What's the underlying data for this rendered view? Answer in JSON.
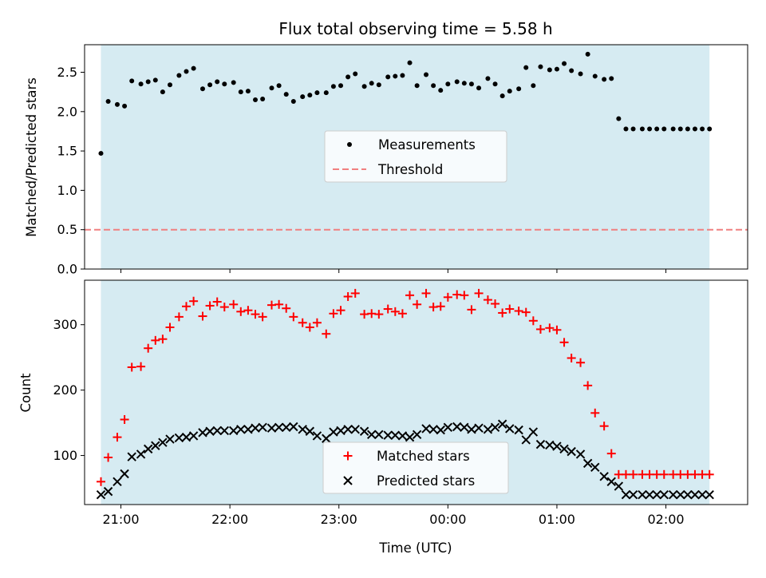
{
  "chart_data": [
    {
      "type": "scatter",
      "title": "Flux total observing time = 5.58 h",
      "ylabel": "Matched/Predicted stars",
      "xlabel": "",
      "xlim": [
        "20:40",
        "02:45"
      ],
      "ylim": [
        0,
        2.85
      ],
      "yticks": [
        0.0,
        0.5,
        1.0,
        1.5,
        2.0,
        2.5
      ],
      "ytick_labels": [
        "0.0",
        "0.5",
        "1.0",
        "1.5",
        "2.0",
        "2.5"
      ],
      "observing_window": [
        "20:49",
        "02:24"
      ],
      "legend": {
        "placement": "center",
        "entries": [
          "Measurements",
          "Threshold"
        ]
      },
      "threshold": {
        "name": "Threshold",
        "value": 0.5,
        "color": "#f08080",
        "style": "dashed"
      },
      "series": [
        {
          "name": "Measurements",
          "color": "#000000",
          "marker": "dot",
          "x": [
            "20:49",
            "20:53",
            "20:58",
            "21:02",
            "21:06",
            "21:11",
            "21:15",
            "21:19",
            "21:23",
            "21:27",
            "21:32",
            "21:36",
            "21:40",
            "21:45",
            "21:49",
            "21:53",
            "21:57",
            "22:02",
            "22:06",
            "22:10",
            "22:14",
            "22:18",
            "22:23",
            "22:27",
            "22:31",
            "22:35",
            "22:40",
            "22:44",
            "22:48",
            "22:53",
            "22:57",
            "23:01",
            "23:05",
            "23:09",
            "23:14",
            "23:18",
            "23:22",
            "23:27",
            "23:31",
            "23:35",
            "23:39",
            "23:43",
            "23:48",
            "23:52",
            "23:56",
            "00:00",
            "00:05",
            "00:09",
            "00:13",
            "00:17",
            "00:22",
            "00:26",
            "00:30",
            "00:34",
            "00:39",
            "00:43",
            "00:47",
            "00:51",
            "00:56",
            "01:00",
            "01:04",
            "01:08",
            "01:13",
            "01:17",
            "01:21",
            "01:26",
            "01:30",
            "01:34",
            "01:38",
            "01:42",
            "01:47",
            "01:51",
            "01:55",
            "01:59",
            "02:04",
            "02:08",
            "02:12",
            "02:16",
            "02:20",
            "02:24"
          ],
          "y": [
            1.47,
            2.13,
            2.09,
            2.07,
            2.39,
            2.35,
            2.38,
            2.4,
            2.25,
            2.34,
            2.46,
            2.51,
            2.55,
            2.29,
            2.34,
            2.38,
            2.35,
            2.37,
            2.25,
            2.26,
            2.15,
            2.16,
            2.3,
            2.33,
            2.22,
            2.13,
            2.19,
            2.21,
            2.24,
            2.24,
            2.32,
            2.33,
            2.44,
            2.48,
            2.32,
            2.36,
            2.34,
            2.44,
            2.45,
            2.46,
            2.62,
            2.33,
            2.47,
            2.33,
            2.27,
            2.35,
            2.38,
            2.36,
            2.35,
            2.3,
            2.42,
            2.35,
            2.2,
            2.26,
            2.29,
            2.56,
            2.33,
            2.57,
            2.53,
            2.54,
            2.61,
            2.52,
            2.48,
            2.73,
            2.45,
            2.41,
            2.42,
            1.91,
            1.78,
            1.78,
            1.78,
            1.78,
            1.78,
            1.78,
            1.78,
            1.78,
            1.78,
            1.78,
            1.78,
            1.78
          ]
        }
      ]
    },
    {
      "type": "scatter",
      "title": "",
      "ylabel": "Count",
      "xlabel": "Time (UTC)",
      "xlim": [
        "20:40",
        "02:45"
      ],
      "ylim": [
        25,
        368
      ],
      "yticks": [
        100,
        200,
        300
      ],
      "ytick_labels": [
        "100",
        "200",
        "300"
      ],
      "xticks": [
        "21:00",
        "22:00",
        "23:00",
        "00:00",
        "01:00",
        "02:00"
      ],
      "observing_window": [
        "20:49",
        "02:24"
      ],
      "legend": {
        "placement": "lower center",
        "entries": [
          "Matched stars",
          "Predicted stars"
        ]
      },
      "series": [
        {
          "name": "Matched stars",
          "color": "#ff0000",
          "marker": "plus",
          "x": [
            "20:49",
            "20:53",
            "20:58",
            "21:02",
            "21:06",
            "21:11",
            "21:15",
            "21:19",
            "21:23",
            "21:27",
            "21:32",
            "21:36",
            "21:40",
            "21:45",
            "21:49",
            "21:53",
            "21:57",
            "22:02",
            "22:06",
            "22:10",
            "22:14",
            "22:18",
            "22:23",
            "22:27",
            "22:31",
            "22:35",
            "22:40",
            "22:44",
            "22:48",
            "22:53",
            "22:57",
            "23:01",
            "23:05",
            "23:09",
            "23:14",
            "23:18",
            "23:22",
            "23:27",
            "23:31",
            "23:35",
            "23:39",
            "23:43",
            "23:48",
            "23:52",
            "23:56",
            "00:00",
            "00:05",
            "00:09",
            "00:13",
            "00:17",
            "00:22",
            "00:26",
            "00:30",
            "00:34",
            "00:39",
            "00:43",
            "00:47",
            "00:51",
            "00:56",
            "01:00",
            "01:04",
            "01:08",
            "01:13",
            "01:17",
            "01:21",
            "01:26",
            "01:30",
            "01:34",
            "01:38",
            "01:42",
            "01:47",
            "01:51",
            "01:55",
            "01:59",
            "02:04",
            "02:08",
            "02:12",
            "02:16",
            "02:20",
            "02:24"
          ],
          "y": [
            60,
            97,
            128,
            155,
            235,
            236,
            264,
            276,
            278,
            296,
            312,
            328,
            336,
            313,
            329,
            335,
            327,
            331,
            320,
            322,
            316,
            312,
            330,
            331,
            325,
            312,
            303,
            296,
            303,
            286,
            317,
            322,
            343,
            348,
            316,
            317,
            316,
            324,
            320,
            317,
            345,
            331,
            348,
            327,
            328,
            342,
            346,
            345,
            323,
            348,
            338,
            332,
            318,
            324,
            321,
            319,
            306,
            293,
            295,
            292,
            273,
            249,
            242,
            207,
            165,
            145,
            103,
            71,
            71,
            71,
            71,
            71,
            71,
            71,
            71,
            71,
            71,
            71,
            71,
            71
          ]
        },
        {
          "name": "Predicted stars",
          "color": "#000000",
          "marker": "x",
          "x": [
            "20:49",
            "20:53",
            "20:58",
            "21:02",
            "21:06",
            "21:11",
            "21:15",
            "21:19",
            "21:23",
            "21:27",
            "21:32",
            "21:36",
            "21:40",
            "21:45",
            "21:49",
            "21:53",
            "21:57",
            "22:02",
            "22:06",
            "22:10",
            "22:14",
            "22:18",
            "22:23",
            "22:27",
            "22:31",
            "22:35",
            "22:40",
            "22:44",
            "22:48",
            "22:53",
            "22:57",
            "23:01",
            "23:05",
            "23:09",
            "23:14",
            "23:18",
            "23:22",
            "23:27",
            "23:31",
            "23:35",
            "23:39",
            "23:43",
            "23:48",
            "23:52",
            "23:56",
            "00:00",
            "00:05",
            "00:09",
            "00:13",
            "00:17",
            "00:22",
            "00:26",
            "00:30",
            "00:34",
            "00:39",
            "00:43",
            "00:47",
            "00:51",
            "00:56",
            "01:00",
            "01:04",
            "01:08",
            "01:13",
            "01:17",
            "01:21",
            "01:26",
            "01:30",
            "01:34",
            "01:38",
            "01:42",
            "01:47",
            "01:51",
            "01:55",
            "01:59",
            "02:04",
            "02:08",
            "02:12",
            "02:16",
            "02:20",
            "02:24"
          ],
          "y": [
            40,
            45,
            60,
            72,
            98,
            102,
            110,
            115,
            120,
            125,
            127,
            128,
            130,
            135,
            137,
            138,
            138,
            138,
            140,
            140,
            142,
            143,
            142,
            143,
            143,
            144,
            140,
            137,
            130,
            126,
            136,
            138,
            140,
            140,
            137,
            132,
            132,
            131,
            131,
            130,
            128,
            132,
            141,
            140,
            139,
            143,
            144,
            143,
            140,
            142,
            140,
            143,
            148,
            141,
            139,
            124,
            136,
            117,
            116,
            114,
            110,
            106,
            102,
            88,
            82,
            68,
            60,
            53,
            40,
            40,
            40,
            40,
            40,
            40,
            40,
            40,
            40,
            40,
            40,
            40
          ]
        }
      ]
    }
  ]
}
